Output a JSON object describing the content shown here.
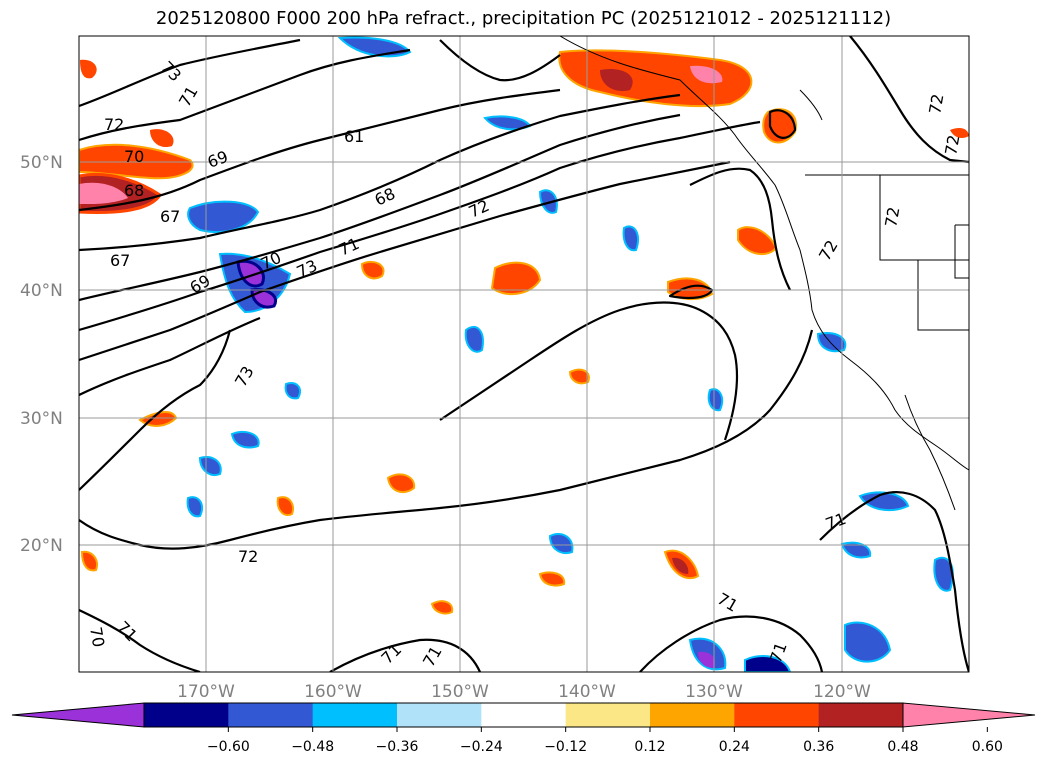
{
  "title": "2025120800 F000 200 hPa refract., precipitation PC (2025121012 - 2025121112)",
  "lat_labels": [
    "50°N",
    "40°N",
    "30°N",
    "20°N"
  ],
  "lon_labels": [
    "170°W",
    "160°W",
    "150°W",
    "140°W",
    "130°W",
    "120°W"
  ],
  "contour_labels": [
    "73",
    "71",
    "72",
    "70",
    "68",
    "69",
    "67",
    "61",
    "68",
    "72",
    "71",
    "70",
    "73",
    "69",
    "67",
    "72",
    "72",
    "72",
    "72",
    "73",
    "71",
    "72",
    "71",
    "70",
    "71",
    "71",
    "71",
    "71"
  ],
  "colorbar": {
    "ticks": [
      "−0.60",
      "−0.48",
      "−0.36",
      "−0.24",
      "−0.12",
      "0.12",
      "0.24",
      "0.36",
      "0.48",
      "0.60"
    ],
    "colors": [
      "#9a31d9",
      "#00008b",
      "#3358d4",
      "#00bfff",
      "#b0e2fa",
      "#ffffff",
      "#fbe785",
      "#ffa500",
      "#ff4500",
      "#b22222",
      "#ff82ab"
    ]
  },
  "chart_data": {
    "type": "contour-map",
    "title": "2025120800 F000 200 hPa refract., precipitation PC (2025121012 - 2025121112)",
    "variable_filled": "precipitation PC",
    "variable_contours": "200 hPa refractivity",
    "extent": {
      "lon": [
        -180,
        -110
      ],
      "lat": [
        10,
        60
      ]
    },
    "contour_levels": [
      61,
      67,
      68,
      69,
      70,
      71,
      72,
      73
    ],
    "fill_levels": [
      -0.6,
      -0.48,
      -0.36,
      -0.24,
      -0.12,
      0.12,
      0.24,
      0.36,
      0.48,
      0.6
    ]
  }
}
